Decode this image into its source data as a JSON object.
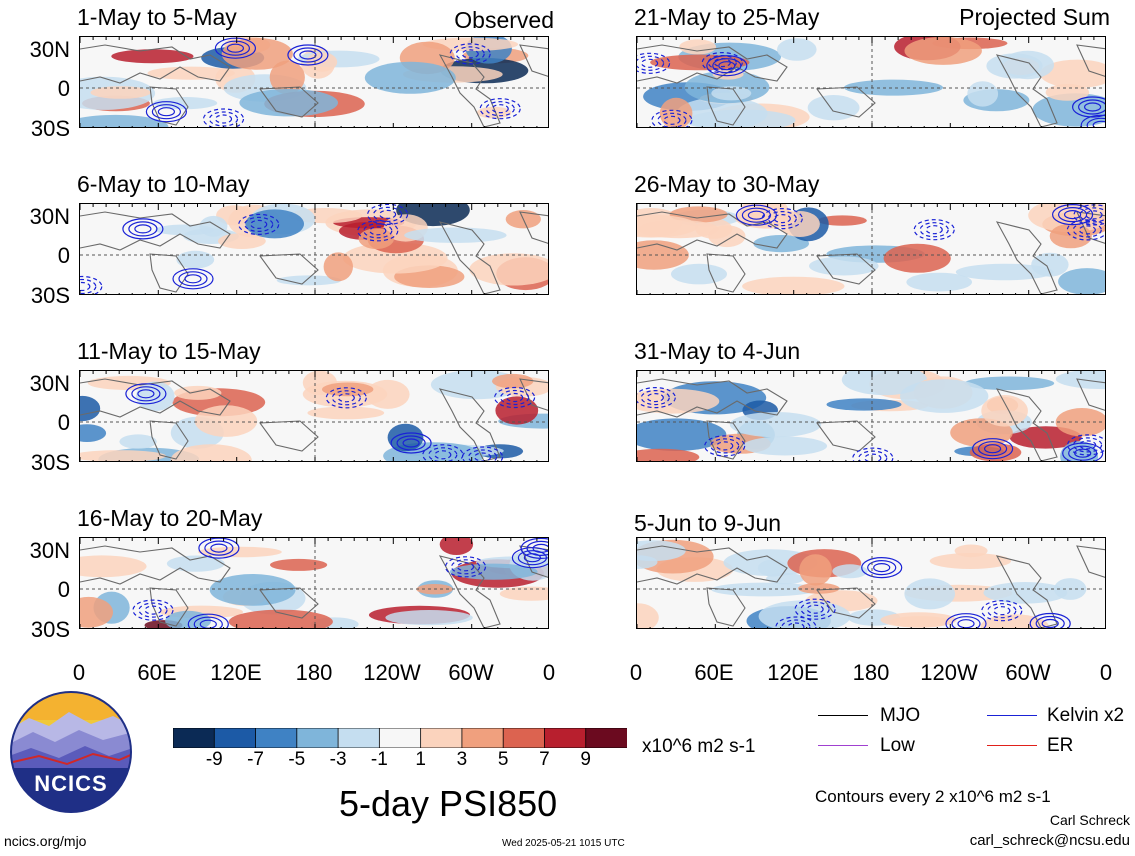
{
  "panels": [
    {
      "title": "1-May to 5-May",
      "corner": "Observed"
    },
    {
      "title": "6-May to 10-May",
      "corner": ""
    },
    {
      "title": "11-May to 15-May",
      "corner": ""
    },
    {
      "title": "16-May to 20-May",
      "corner": ""
    },
    {
      "title": "21-May to 25-May",
      "corner": "Projected Sum"
    },
    {
      "title": "26-May to 30-May",
      "corner": ""
    },
    {
      "title": "31-May to 4-Jun",
      "corner": ""
    },
    {
      "title": "5-Jun to 9-Jun",
      "corner": ""
    }
  ],
  "lat_labels": [
    "30N",
    "0",
    "30S"
  ],
  "lon_labels": [
    "0",
    "60E",
    "120E",
    "180",
    "120W",
    "60W",
    "0"
  ],
  "colorbar": {
    "ticks": [
      "-9",
      "-7",
      "-5",
      "-3",
      "-1",
      "1",
      "3",
      "5",
      "7",
      "9"
    ],
    "units": "x10^6 m2 s-1",
    "colors": [
      "#0b2a55",
      "#1c5aa6",
      "#3f82c4",
      "#7fb5da",
      "#c5def0",
      "#f7f7f7",
      "#fbd3bd",
      "#f0a07e",
      "#dc6350",
      "#b81f2e",
      "#6b0a1f"
    ]
  },
  "legend": [
    {
      "label": "MJO",
      "color": "#000000"
    },
    {
      "label": "Kelvin x2",
      "color": "#1a22d6"
    },
    {
      "label": "Low",
      "color": "#a040d0"
    },
    {
      "label": "ER",
      "color": "#e0201a"
    }
  ],
  "main_title": "5-day PSI850",
  "contour_note": "Contours every 2 x10^6 m2 s-1",
  "logo_text": "NCICS",
  "site": "ncics.org/mjo",
  "timestamp": "Wed 2025-05-21 1015 UTC",
  "author": "Carl Schreck",
  "email": "carl_schreck@ncsu.edu"
}
